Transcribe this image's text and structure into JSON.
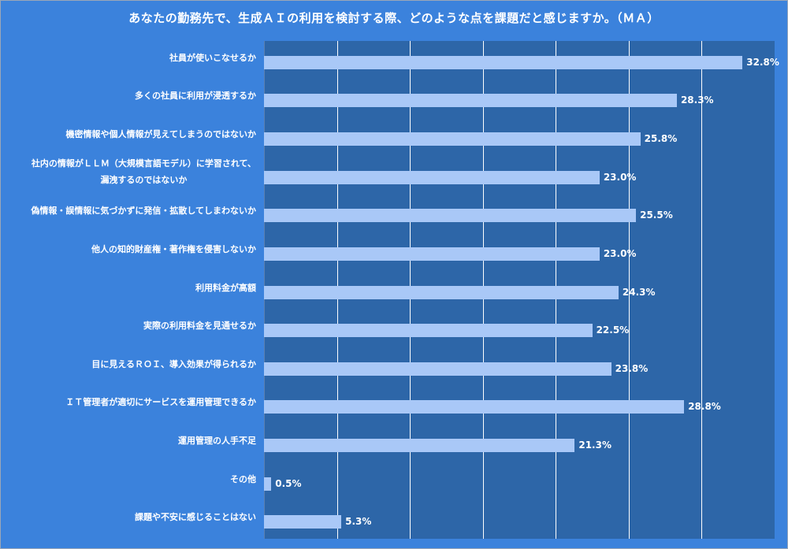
{
  "chart_data": {
    "type": "bar",
    "orientation": "horizontal",
    "title": "あなたの勤務先で、生成ＡＩの利用を検討する際、どのような点を課題だと感じますか。（ＭＡ）",
    "categories": [
      [
        "社員が使いこなせるか"
      ],
      [
        "多くの社員に利用が浸透するか"
      ],
      [
        "機密情報や個人情報が見えてしまうのではないか"
      ],
      [
        "社内の情報がＬＬＭ（大規模言語モデル）に学習されて、",
        "漏洩するのではないか"
      ],
      [
        "偽情報・誤情報に気づかずに発信・拡散してしまわないか"
      ],
      [
        "他人の知的財産権・著作権を侵害しないか"
      ],
      [
        "利用料金が高額"
      ],
      [
        "実際の利用料金を見通せるか"
      ],
      [
        "目に見えるＲＯＩ、導入効果が得られるか"
      ],
      [
        "ＩＴ管理者が適切にサービスを運用管理できるか"
      ],
      [
        "運用管理の人手不足"
      ],
      [
        "その他"
      ],
      [
        "課題や不安に感じることはない"
      ]
    ],
    "values": [
      32.8,
      28.3,
      25.8,
      23.0,
      25.5,
      23.0,
      24.3,
      22.5,
      23.8,
      28.8,
      21.3,
      0.5,
      5.3
    ],
    "value_labels": [
      "32.8%",
      "28.3%",
      "25.8%",
      "23.0%",
      "25.5%",
      "23.0%",
      "24.3%",
      "22.5%",
      "23.8%",
      "28.8%",
      "21.3%",
      "0.5%",
      "5.3%"
    ],
    "xlim": [
      0,
      35
    ],
    "x_gridlines": [
      5,
      10,
      15,
      20,
      25,
      30
    ],
    "grid": true,
    "legend": "none",
    "colors": {
      "background": "#3b82dc",
      "plot_area": "#2d66a8",
      "bar": "#a9c8f7",
      "gridline": "#ffffff",
      "text": "#ffffff"
    }
  }
}
